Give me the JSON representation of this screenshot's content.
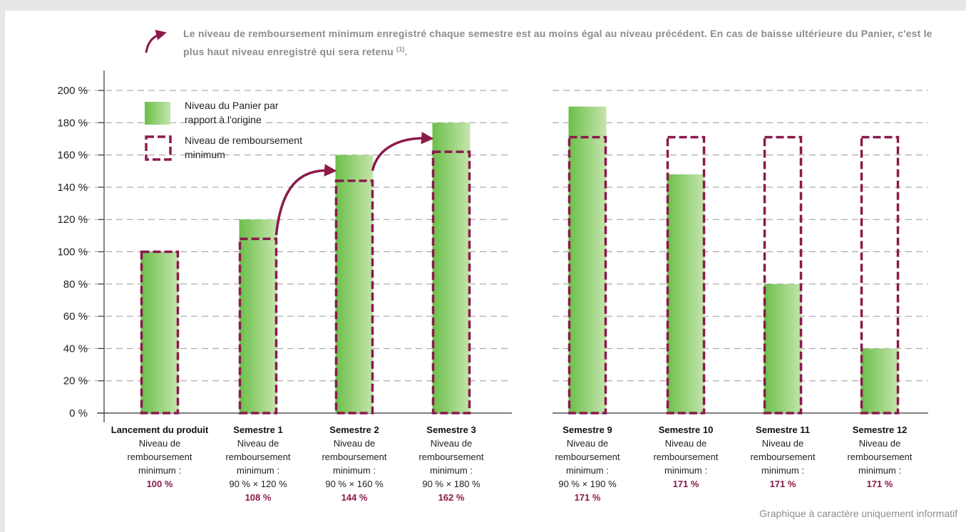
{
  "header": {
    "text": "Le niveau de remboursement minimum enregistré chaque semestre est au moins égal au niveau précédent. En cas de baisse ultérieure du Panier, c'est le plus haut niveau enregistré qui sera retenu",
    "note_ref": "(1)",
    "end": "."
  },
  "footnote": "Graphique à caractère uniquement informatif",
  "colors": {
    "bar_dark": "#6cbf4a",
    "bar_light": "#c5e5ad",
    "minimum_outline": "#8b1a4b",
    "arrow": "#8b1a4b",
    "value_text": "#8b1a4b",
    "grid": "#9a9a9a"
  },
  "chart_data": {
    "type": "bar",
    "ylim": [
      0,
      200
    ],
    "ytick_step": 20,
    "ytick_labels": [
      "0 %",
      "20 %",
      "40 %",
      "60 %",
      "80 %",
      "100 %",
      "120 %",
      "140 %",
      "160 %",
      "180 %",
      "200 %"
    ],
    "grid": "dashed horizontal",
    "legend_placement": "top-left",
    "series": [
      {
        "name": "Niveau du Panier par rapport à l'origine",
        "legend_lines": [
          "Niveau du Panier par",
          "rapport à l'origine"
        ],
        "style": "green gradient bar",
        "values": [
          100,
          120,
          160,
          180,
          190,
          148,
          80,
          40
        ]
      },
      {
        "name": "Niveau de remboursement minimum",
        "legend_lines": [
          "Niveau de remboursement",
          "minimum"
        ],
        "style": "dashed outline",
        "values": [
          100,
          108,
          144,
          162,
          171,
          171,
          171,
          171
        ]
      }
    ],
    "categories": [
      {
        "title": "Lancement du produit",
        "lines": [
          "Niveau de",
          "remboursement",
          "minimum :"
        ],
        "value": "100 %"
      },
      {
        "title": "Semestre 1",
        "lines": [
          "Niveau de",
          "remboursement",
          "minimum :",
          "90 % × 120 %"
        ],
        "value": "108 %"
      },
      {
        "title": "Semestre 2",
        "lines": [
          "Niveau de",
          "remboursement",
          "minimum :",
          "90 % × 160 %"
        ],
        "value": "144 %"
      },
      {
        "title": "Semestre 3",
        "lines": [
          "Niveau de",
          "remboursement",
          "minimum :",
          "90 % × 180 %"
        ],
        "value": "162 %"
      },
      {
        "title": "Semestre 9",
        "lines": [
          "Niveau de",
          "remboursement",
          "minimum :",
          "90 % × 190 %"
        ],
        "value": "171 %"
      },
      {
        "title": "Semestre 10",
        "lines": [
          "Niveau de",
          "remboursement",
          "minimum :"
        ],
        "value": "171 %"
      },
      {
        "title": "Semestre 11",
        "lines": [
          "Niveau de",
          "remboursement",
          "minimum :"
        ],
        "value": "171 %"
      },
      {
        "title": "Semestre 12",
        "lines": [
          "Niveau de",
          "remboursement",
          "minimum :"
        ],
        "value": "171 %"
      }
    ],
    "arrows_between_categories": [
      [
        1,
        2
      ],
      [
        2,
        3
      ]
    ]
  }
}
